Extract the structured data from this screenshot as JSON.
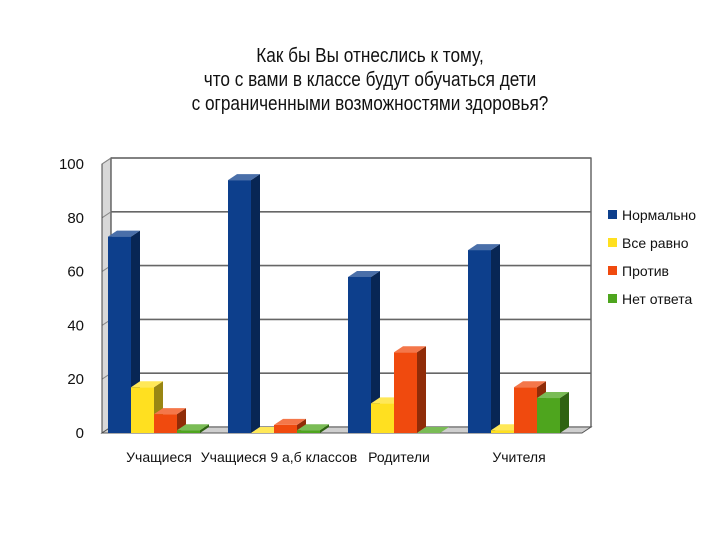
{
  "chart_data": {
    "type": "bar",
    "title_lines": [
      "Как бы Вы отнеслись к тому,",
      "что с вами в классе будут обучаться дети",
      "с ограниченными возможностями здоровья?"
    ],
    "categories": [
      "Учащиеся",
      "Учащиеся 9 а,б классов",
      "Родители",
      "Учителя"
    ],
    "series": [
      {
        "name": "Нормально",
        "values": [
          73,
          94,
          58,
          68
        ],
        "color": "#0d3f8c"
      },
      {
        "name": "Все равно",
        "values": [
          17,
          0,
          11,
          1
        ],
        "color": "#ffe020"
      },
      {
        "name": "Против",
        "values": [
          7,
          3,
          30,
          17
        ],
        "color": "#f04a0e"
      },
      {
        "name": "Нет ответа",
        "values": [
          1,
          1,
          0,
          13
        ],
        "color": "#4ea51e"
      }
    ],
    "ylim": [
      0,
      100
    ],
    "yticks": [
      0,
      20,
      40,
      60,
      80,
      100
    ],
    "grid": true,
    "legend_position": "right"
  }
}
